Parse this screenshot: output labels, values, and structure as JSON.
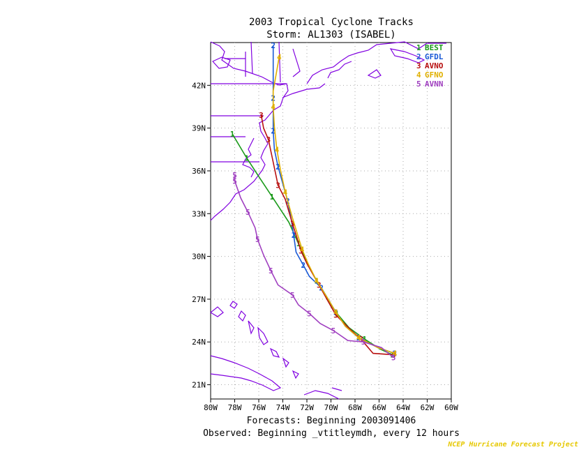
{
  "title_line1": "2003 Tropical Cyclone Tracks",
  "title_line2": "Storm: AL1303 (ISABEL)",
  "footer_line1": "Forecasts: Beginning 2003091406",
  "footer_line2": "Observed: Beginning _vtitleymdh, every 12 hours",
  "credit": "NCEP Hurricane Forecast Project",
  "colors": {
    "land_outline": "#8000e0",
    "grid": "#aaaaaa",
    "credit": "#e6c800"
  },
  "map": {
    "lon_range": [
      -80,
      -60
    ],
    "lat_range": [
      20,
      45
    ],
    "lon_ticks": [
      "80W",
      "78W",
      "76W",
      "74W",
      "72W",
      "70W",
      "68W",
      "66W",
      "64W",
      "62W",
      "60W"
    ],
    "lat_ticks": [
      "21N",
      "24N",
      "27N",
      "30N",
      "33N",
      "36N",
      "39N",
      "42N"
    ]
  },
  "legend": [
    {
      "num": "1",
      "name": "BEST",
      "color": "#1a9a1a"
    },
    {
      "num": "2",
      "name": "GFDL",
      "color": "#1a5ad6"
    },
    {
      "num": "3",
      "name": "AVNO",
      "color": "#b81010"
    },
    {
      "num": "4",
      "name": "GFNO",
      "color": "#e0b000"
    },
    {
      "num": "5",
      "name": "AVNN",
      "color": "#a040c0"
    }
  ],
  "chart_data": {
    "type": "map-tracks",
    "tracks": [
      {
        "id": "1",
        "name": "BEST",
        "color": "#1a9a1a",
        "points": [
          [
            -64.9,
            23.1
          ],
          [
            -65.9,
            23.5
          ],
          [
            -67.2,
            24.2
          ],
          [
            -68.5,
            25.0
          ],
          [
            -69.5,
            26.0
          ],
          [
            -70.3,
            27.0
          ],
          [
            -71.2,
            28.3
          ],
          [
            -72.0,
            29.6
          ],
          [
            -72.7,
            30.9
          ],
          [
            -73.5,
            32.4
          ],
          [
            -74.9,
            34.2
          ],
          [
            -76.0,
            35.6
          ],
          [
            -77.0,
            36.9
          ],
          [
            -78.2,
            38.6
          ]
        ]
      },
      {
        "id": "2",
        "name": "GFDL",
        "color": "#1a5ad6",
        "points": [
          [
            -64.7,
            23.2
          ],
          [
            -66.1,
            23.6
          ],
          [
            -67.7,
            24.3
          ],
          [
            -68.8,
            25.1
          ],
          [
            -69.6,
            26.1
          ],
          [
            -70.3,
            27.1
          ],
          [
            -70.8,
            27.8
          ],
          [
            -71.8,
            28.6
          ],
          [
            -72.3,
            29.4
          ],
          [
            -72.9,
            30.3
          ],
          [
            -73.1,
            31.5
          ],
          [
            -73.3,
            32.6
          ],
          [
            -73.6,
            33.9
          ],
          [
            -74.0,
            35.1
          ],
          [
            -74.4,
            36.3
          ],
          [
            -74.7,
            37.5
          ],
          [
            -74.8,
            38.8
          ],
          [
            -74.8,
            40.0
          ],
          [
            -74.8,
            41.1
          ],
          [
            -74.8,
            42.2
          ],
          [
            -74.8,
            44.8
          ]
        ]
      },
      {
        "id": "3",
        "name": "AVNO",
        "color": "#b81010",
        "points": [
          [
            -64.8,
            23.1
          ],
          [
            -66.5,
            23.2
          ],
          [
            -67.5,
            24.2
          ],
          [
            -68.3,
            24.8
          ],
          [
            -69.6,
            25.9
          ],
          [
            -70.2,
            26.8
          ],
          [
            -71.0,
            28.0
          ],
          [
            -72.0,
            29.5
          ],
          [
            -72.5,
            30.4
          ],
          [
            -72.9,
            31.5
          ],
          [
            -73.2,
            32.3
          ],
          [
            -73.8,
            34.0
          ],
          [
            -74.4,
            35.0
          ],
          [
            -74.9,
            37.0
          ],
          [
            -75.2,
            38.2
          ],
          [
            -75.6,
            39.0
          ],
          [
            -75.8,
            39.9
          ]
        ]
      },
      {
        "id": "4",
        "name": "GFNO",
        "color": "#e0b000",
        "points": [
          [
            -64.7,
            23.2
          ],
          [
            -66.1,
            23.6
          ],
          [
            -67.7,
            24.3
          ],
          [
            -68.8,
            25.1
          ],
          [
            -69.6,
            26.1
          ],
          [
            -70.3,
            27.1
          ],
          [
            -71.2,
            28.3
          ],
          [
            -71.9,
            29.5
          ],
          [
            -72.4,
            30.5
          ],
          [
            -73.2,
            32.7
          ],
          [
            -73.8,
            34.5
          ],
          [
            -74.2,
            36.1
          ],
          [
            -74.5,
            37.5
          ],
          [
            -74.7,
            39.1
          ],
          [
            -74.8,
            40.5
          ],
          [
            -74.8,
            41.6
          ],
          [
            -74.3,
            44.0
          ]
        ]
      },
      {
        "id": "5",
        "name": "AVNN",
        "color": "#a040c0",
        "points": [
          [
            -64.8,
            22.9
          ],
          [
            -65.8,
            23.6
          ],
          [
            -67.3,
            24.0
          ],
          [
            -68.6,
            24.1
          ],
          [
            -69.8,
            24.8
          ],
          [
            -70.9,
            25.3
          ],
          [
            -71.8,
            26.0
          ],
          [
            -72.7,
            26.6
          ],
          [
            -73.2,
            27.3
          ],
          [
            -74.4,
            28.0
          ],
          [
            -75.0,
            29.0
          ],
          [
            -75.6,
            30.1
          ],
          [
            -76.1,
            31.2
          ],
          [
            -76.3,
            32.0
          ],
          [
            -76.9,
            33.1
          ],
          [
            -77.5,
            34.1
          ],
          [
            -78.0,
            35.3
          ],
          [
            -78.0,
            35.7
          ]
        ]
      }
    ]
  }
}
